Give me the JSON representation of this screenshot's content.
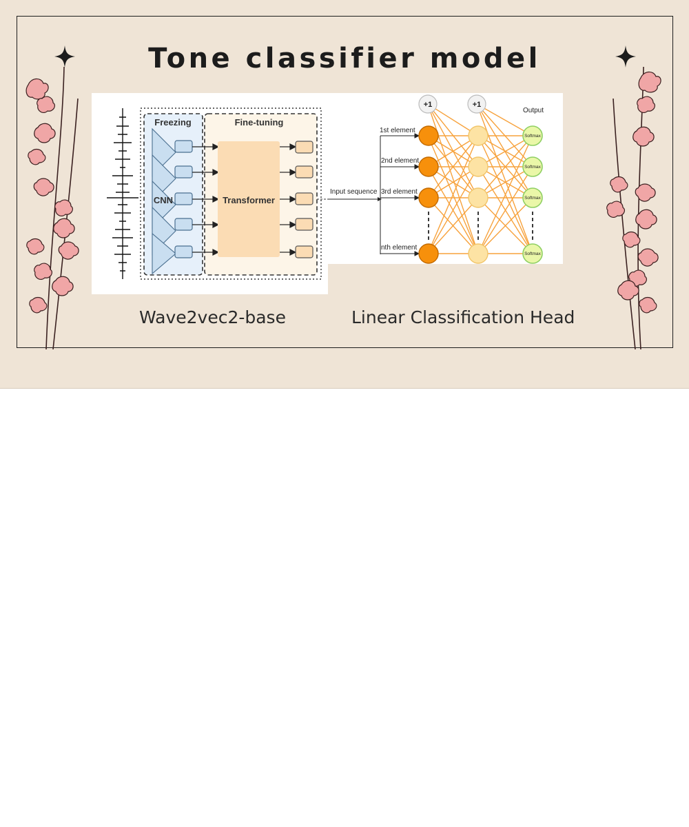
{
  "slide": {
    "title": "Tone classifier model",
    "captions": {
      "left": "Wave2vec2-base",
      "right": "Linear Classification Head"
    }
  },
  "wave2vec_diagram": {
    "freezing_label": "Freezing",
    "finetuning_label": "Fine-tuning",
    "cnn_label": "CNN",
    "transformer_label": "Transformer"
  },
  "classification_diagram": {
    "input_label": "Input sequence",
    "bias_label": "+1",
    "output_label": "Output",
    "softmax_label": "Softmax",
    "elements": [
      "1st element",
      "2nd element",
      "3rd element",
      "nth element"
    ]
  },
  "colors": {
    "background": "#efe4d6",
    "cnn_fill": "#c9def0",
    "transformer_fill": "#fbdcb4",
    "input_node": "#f7900b",
    "hidden_node": "#fde3a4",
    "softmax_node": "#eaf7a8",
    "connection": "#f7a23c",
    "flower": "#f0a6a6"
  },
  "icons": [
    "sparkle-icon",
    "flower-branch-icon"
  ]
}
